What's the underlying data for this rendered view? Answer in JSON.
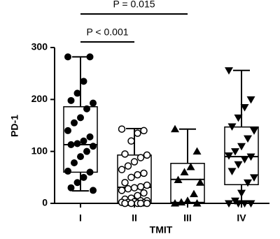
{
  "chart_data": {
    "type": "box",
    "x_label": "TMIT",
    "y_label": "PD-1",
    "categories": [
      "I",
      "II",
      "III",
      "IV"
    ],
    "ylim": [
      0,
      300
    ],
    "yticks": [
      0,
      100,
      200,
      300
    ],
    "annotations": [
      "P = 0.015",
      "P < 0.001"
    ],
    "boxes": [
      {
        "marker": "filled-circle",
        "min": 24,
        "q1": 60,
        "median": 113,
        "q3": 186,
        "max": 282,
        "points": [
          282,
          282,
          235,
          212,
          198,
          193,
          182,
          165,
          155,
          140,
          128,
          120,
          115,
          113,
          110,
          100,
          90,
          78,
          62,
          60,
          50,
          40,
          30,
          25
        ]
      },
      {
        "marker": "open-circle",
        "min": 0,
        "q1": 0,
        "median": 31,
        "q3": 93,
        "max": 144,
        "points": [
          143,
          140,
          135,
          120,
          95,
          93,
          88,
          80,
          72,
          65,
          58,
          55,
          50,
          40,
          35,
          32,
          30,
          28,
          25,
          20,
          15,
          10,
          8,
          5,
          5,
          3,
          2,
          2,
          1,
          0,
          0,
          0,
          0,
          0
        ]
      },
      {
        "marker": "triangle-up",
        "min": 0,
        "q1": 2,
        "median": 46,
        "q3": 77,
        "max": 143,
        "points": [
          143,
          100,
          70,
          60,
          45,
          40,
          18,
          5,
          2,
          0,
          0
        ]
      },
      {
        "marker": "triangle-down",
        "min": 0,
        "q1": 36,
        "median": 90,
        "q3": 147,
        "max": 256,
        "points": [
          256,
          200,
          185,
          165,
          148,
          140,
          125,
          110,
          100,
          92,
          90,
          85,
          75,
          62,
          50,
          40,
          20,
          5,
          0,
          0,
          0,
          0
        ]
      }
    ]
  }
}
